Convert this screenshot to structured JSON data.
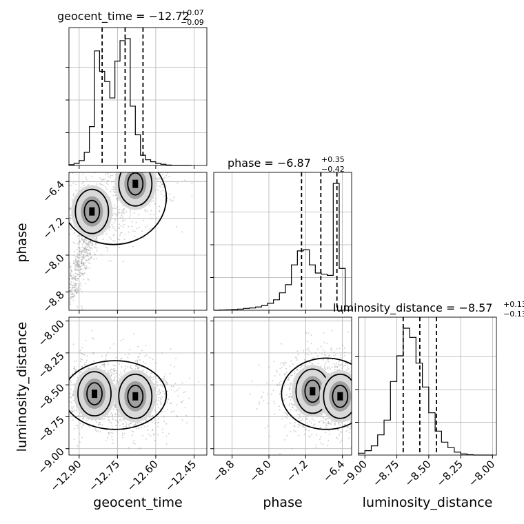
{
  "chart_data": {
    "type": "corner",
    "grid": true,
    "parameters": [
      {
        "name": "geocent_time",
        "title_main": "geocent_time = −12.72",
        "title_plus": "+0.07",
        "title_minus": "−0.09",
        "range": [
          -12.94,
          -12.4
        ],
        "ticks": [
          -12.9,
          -12.75,
          -12.6,
          -12.45
        ],
        "tick_labels": [
          "−12.90",
          "−12.75",
          "−12.60",
          "−12.45"
        ],
        "quantiles": [
          -12.81,
          -12.72,
          -12.65
        ],
        "hist_bins": [
          -12.94,
          -12.92,
          -12.9,
          -12.88,
          -12.86,
          -12.84,
          -12.82,
          -12.8,
          -12.78,
          -12.76,
          -12.74,
          -12.72,
          -12.7,
          -12.68,
          -12.66,
          -12.64,
          -12.62,
          -12.6,
          -12.58,
          -12.56,
          -12.54,
          -12.52,
          -12.5,
          -12.48,
          -12.46
        ],
        "hist_counts": [
          2,
          5,
          12,
          32,
          95,
          280,
          230,
          205,
          165,
          255,
          305,
          310,
          145,
          75,
          25,
          14,
          9,
          5,
          3,
          1,
          0,
          0,
          0,
          0
        ]
      },
      {
        "name": "phase",
        "title_main": "phase = −6.87",
        "title_plus": "+0.35",
        "title_minus": "−0.42",
        "range": [
          -9.2,
          -6.2
        ],
        "ticks": [
          -8.8,
          -8.0,
          -7.2,
          -6.4
        ],
        "tick_labels": [
          "−8.8",
          "−8.0",
          "−7.2",
          "−6.4"
        ],
        "quantiles": [
          -7.29,
          -6.87,
          -6.52
        ],
        "hist_bins": [
          -9.2,
          -9.07,
          -8.94,
          -8.81,
          -8.68,
          -8.55,
          -8.42,
          -8.29,
          -8.16,
          -8.03,
          -7.9,
          -7.77,
          -7.64,
          -7.51,
          -7.38,
          -7.25,
          -7.12,
          -6.99,
          -6.86,
          -6.73,
          -6.6,
          -6.47,
          -6.34,
          -6.21
        ],
        "hist_counts": [
          0,
          1,
          2,
          3,
          5,
          8,
          10,
          14,
          20,
          30,
          45,
          75,
          110,
          195,
          255,
          260,
          195,
          160,
          155,
          150,
          545,
          180,
          0
        ]
      },
      {
        "name": "luminosity_distance",
        "title_main": "luminosity_distance = −8.57",
        "title_plus": "+0.13",
        "title_minus": "−0.13",
        "range": [
          -9.05,
          -7.97
        ],
        "ticks": [
          -9.0,
          -8.75,
          -8.5,
          -8.25,
          -8.0
        ],
        "tick_labels": [
          "−9.00",
          "−8.75",
          "−8.50",
          "−8.25",
          "−8.00"
        ],
        "quantiles": [
          -8.7,
          -8.57,
          -8.44
        ],
        "hist_bins": [
          -9.05,
          -9.0,
          -8.95,
          -8.9,
          -8.85,
          -8.8,
          -8.75,
          -8.7,
          -8.65,
          -8.6,
          -8.55,
          -8.5,
          -8.45,
          -8.4,
          -8.35,
          -8.3,
          -8.25,
          -8.2,
          -8.15,
          -8.1,
          -8.05,
          -8.0
        ],
        "hist_counts": [
          5,
          12,
          25,
          55,
          95,
          200,
          270,
          345,
          320,
          250,
          185,
          115,
          65,
          35,
          20,
          8,
          3,
          1,
          0,
          0,
          0
        ]
      }
    ],
    "axis_labels": {
      "x": [
        "geocent_time",
        "phase",
        "luminosity_distance"
      ],
      "y": [
        "phase",
        "luminosity_distance"
      ]
    },
    "density_peaks": [
      {
        "row": 1,
        "col": 0,
        "peaks": [
          [
            -12.68,
            -6.45
          ],
          [
            -12.85,
            -7.05
          ]
        ]
      },
      {
        "row": 2,
        "col": 0,
        "peaks": [
          [
            -12.84,
            -8.57
          ],
          [
            -12.68,
            -8.59
          ]
        ]
      },
      {
        "row": 2,
        "col": 1,
        "peaks": [
          [
            -7.05,
            -8.55
          ],
          [
            -6.45,
            -8.59
          ]
        ]
      }
    ]
  }
}
